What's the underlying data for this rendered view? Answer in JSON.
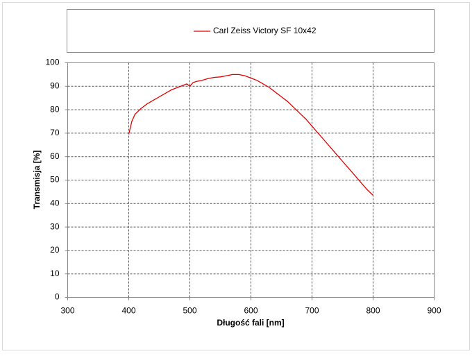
{
  "chart_data": {
    "type": "line",
    "x_label": "Długość fali [nm]",
    "y_label": "Transmisja [%]",
    "x": [
      400,
      405,
      410,
      420,
      430,
      440,
      450,
      460,
      470,
      480,
      490,
      495,
      500,
      505,
      510,
      520,
      530,
      540,
      550,
      560,
      570,
      580,
      590,
      600,
      610,
      620,
      630,
      640,
      650,
      660,
      670,
      680,
      690,
      700,
      710,
      720,
      730,
      740,
      750,
      760,
      770,
      780,
      790,
      800
    ],
    "series": [
      {
        "name": "Carl Zeiss Victory SF 10x42",
        "color": "#e00000",
        "values": [
          69.5,
          75,
          78,
          80.5,
          82.5,
          84,
          85.5,
          87,
          88.5,
          89.5,
          90.5,
          91,
          90,
          91.5,
          92,
          92.5,
          93.3,
          93.8,
          94,
          94.5,
          95,
          95,
          94.5,
          93.5,
          92.5,
          91,
          89.5,
          87.5,
          85.5,
          83.5,
          81,
          78.5,
          76,
          73,
          70,
          67,
          64,
          61,
          58,
          55,
          52,
          49,
          46,
          43.5
        ]
      }
    ],
    "xlim": [
      300,
      900
    ],
    "xticks": [
      300,
      400,
      500,
      600,
      700,
      800,
      900
    ],
    "ylim": [
      0,
      100
    ],
    "yticks": [
      0,
      10,
      20,
      30,
      40,
      50,
      60,
      70,
      80,
      90,
      100
    ],
    "grid": true,
    "legend": "top"
  }
}
